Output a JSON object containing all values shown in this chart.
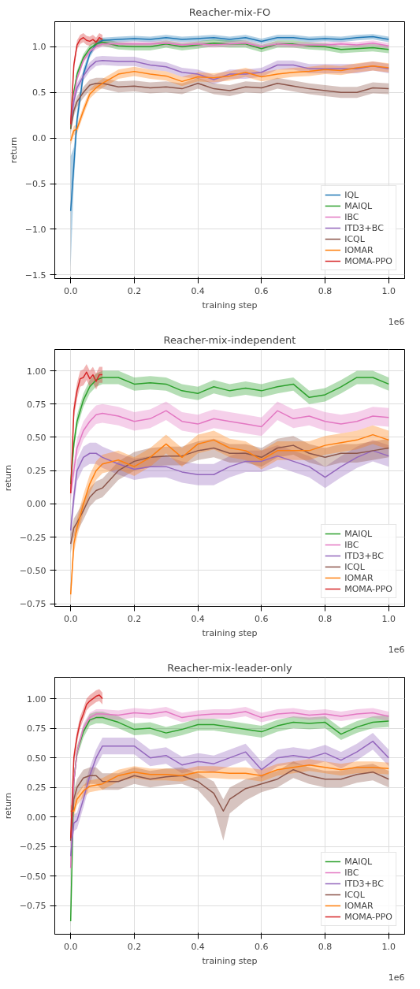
{
  "chart_data": [
    {
      "type": "line",
      "title": "Reacher-mix-FO",
      "xlabel": "training step",
      "ylabel": "return",
      "annotations": [
        "1e6"
      ],
      "grid": true,
      "legend": "bottom right",
      "xlim": [
        -0.05,
        1.05
      ],
      "ylim": [
        -1.54,
        1.275
      ],
      "xticks": [
        {
          "value": 0,
          "label": "0.0"
        },
        {
          "value": 0.2,
          "label": "0.2"
        },
        {
          "value": 0.4,
          "label": "0.4"
        },
        {
          "value": 0.6,
          "label": "0.6"
        },
        {
          "value": 0.8,
          "label": "0.8"
        },
        {
          "value": 1,
          "label": "1.0"
        }
      ],
      "yticks": [
        {
          "value": -1.5,
          "label": "−1.5"
        },
        {
          "value": -1,
          "label": "−1.0"
        },
        {
          "value": -0.5,
          "label": "−0.5"
        },
        {
          "value": 0,
          "label": "0.0"
        },
        {
          "value": 0.5,
          "label": "0.5"
        },
        {
          "value": 1,
          "label": "1.0"
        }
      ],
      "x": [
        0,
        0.01,
        0.02,
        0.04,
        0.06,
        0.08,
        0.1,
        0.15,
        0.2,
        0.25,
        0.3,
        0.35,
        0.4,
        0.45,
        0.5,
        0.55,
        0.6,
        0.65,
        0.7,
        0.75,
        0.8,
        0.85,
        0.9,
        0.95,
        1.0
      ],
      "series": [
        {
          "name": "IQL",
          "color": "#1f77b4",
          "values": [
            -0.8,
            -0.3,
            0.2,
            0.7,
            0.92,
            1.03,
            1.07,
            1.08,
            1.09,
            1.08,
            1.1,
            1.08,
            1.09,
            1.1,
            1.08,
            1.1,
            1.06,
            1.1,
            1.1,
            1.08,
            1.09,
            1.08,
            1.1,
            1.11,
            1.08
          ],
          "lower": [
            -1.41,
            -0.5,
            0.1,
            0.64,
            0.88,
            1.0,
            1.04,
            1.05,
            1.06,
            1.05,
            1.07,
            1.05,
            1.06,
            1.07,
            1.05,
            1.07,
            1.03,
            1.07,
            1.07,
            1.05,
            1.06,
            1.05,
            1.07,
            1.08,
            1.05
          ],
          "upper": [
            -0.2,
            -0.1,
            0.3,
            0.76,
            0.96,
            1.06,
            1.1,
            1.11,
            1.12,
            1.11,
            1.13,
            1.11,
            1.12,
            1.13,
            1.11,
            1.13,
            1.09,
            1.13,
            1.13,
            1.11,
            1.12,
            1.11,
            1.13,
            1.14,
            1.11
          ]
        },
        {
          "name": "MAIQL",
          "color": "#2ca02c",
          "values": [
            0.1,
            0.5,
            0.7,
            0.88,
            0.98,
            1.03,
            1.05,
            1.01,
            1.0,
            1.0,
            1.03,
            1.0,
            1.02,
            1.04,
            1.03,
            1.03,
            0.98,
            1.03,
            1.03,
            1.01,
            1.0,
            0.97,
            0.98,
            0.99,
            0.97
          ],
          "lower": [
            0.06,
            0.46,
            0.66,
            0.84,
            0.94,
            0.99,
            1.01,
            0.97,
            0.96,
            0.96,
            0.99,
            0.96,
            0.98,
            1.0,
            0.99,
            0.99,
            0.94,
            0.99,
            0.99,
            0.97,
            0.96,
            0.93,
            0.94,
            0.95,
            0.93
          ],
          "upper": [
            0.14,
            0.54,
            0.74,
            0.92,
            1.02,
            1.07,
            1.09,
            1.05,
            1.04,
            1.04,
            1.07,
            1.04,
            1.06,
            1.08,
            1.07,
            1.07,
            1.02,
            1.07,
            1.07,
            1.05,
            1.04,
            1.01,
            1.02,
            1.03,
            1.01
          ]
        },
        {
          "name": "IBC",
          "color": "#e377c2",
          "values": [
            0.2,
            0.45,
            0.65,
            0.85,
            0.95,
            1.0,
            1.03,
            1.03,
            1.03,
            1.03,
            1.04,
            1.02,
            1.03,
            1.02,
            1.03,
            1.04,
            1.0,
            1.03,
            1.02,
            1.02,
            1.02,
            1.03,
            1.02,
            1.04,
            1.01
          ],
          "lower": [
            0.17,
            0.42,
            0.62,
            0.82,
            0.92,
            0.97,
            1.0,
            1.0,
            1.0,
            1.0,
            1.01,
            0.99,
            1.0,
            0.99,
            1.0,
            1.01,
            0.97,
            1.0,
            0.99,
            0.99,
            0.99,
            1.0,
            0.99,
            1.01,
            0.98
          ],
          "upper": [
            0.23,
            0.48,
            0.68,
            0.88,
            0.98,
            1.03,
            1.06,
            1.06,
            1.06,
            1.06,
            1.07,
            1.05,
            1.06,
            1.05,
            1.06,
            1.07,
            1.03,
            1.06,
            1.05,
            1.05,
            1.05,
            1.06,
            1.05,
            1.07,
            1.04
          ]
        },
        {
          "name": "ITD3+BC",
          "color": "#9467bd",
          "values": [
            0.15,
            0.4,
            0.55,
            0.68,
            0.78,
            0.84,
            0.85,
            0.84,
            0.84,
            0.8,
            0.78,
            0.72,
            0.7,
            0.64,
            0.7,
            0.7,
            0.72,
            0.8,
            0.8,
            0.76,
            0.76,
            0.76,
            0.76,
            0.79,
            0.76
          ],
          "lower": [
            0.1,
            0.35,
            0.5,
            0.63,
            0.73,
            0.79,
            0.8,
            0.79,
            0.79,
            0.75,
            0.73,
            0.67,
            0.65,
            0.59,
            0.65,
            0.65,
            0.67,
            0.75,
            0.75,
            0.71,
            0.71,
            0.71,
            0.71,
            0.74,
            0.71
          ],
          "upper": [
            0.2,
            0.45,
            0.6,
            0.73,
            0.83,
            0.89,
            0.9,
            0.89,
            0.89,
            0.85,
            0.83,
            0.77,
            0.75,
            0.69,
            0.75,
            0.75,
            0.77,
            0.85,
            0.85,
            0.81,
            0.81,
            0.81,
            0.81,
            0.84,
            0.81
          ]
        },
        {
          "name": "ICQL",
          "color": "#8c564b",
          "values": [
            0.1,
            0.3,
            0.4,
            0.5,
            0.58,
            0.6,
            0.6,
            0.56,
            0.57,
            0.55,
            0.56,
            0.54,
            0.6,
            0.54,
            0.52,
            0.56,
            0.55,
            0.6,
            0.57,
            0.54,
            0.52,
            0.5,
            0.5,
            0.55,
            0.54
          ],
          "lower": [
            0.04,
            0.24,
            0.34,
            0.44,
            0.52,
            0.54,
            0.54,
            0.5,
            0.51,
            0.49,
            0.5,
            0.48,
            0.54,
            0.48,
            0.46,
            0.5,
            0.49,
            0.54,
            0.51,
            0.48,
            0.46,
            0.44,
            0.44,
            0.49,
            0.48
          ],
          "upper": [
            0.16,
            0.36,
            0.46,
            0.56,
            0.64,
            0.66,
            0.66,
            0.62,
            0.63,
            0.61,
            0.62,
            0.6,
            0.66,
            0.6,
            0.58,
            0.62,
            0.61,
            0.66,
            0.63,
            0.6,
            0.58,
            0.56,
            0.56,
            0.61,
            0.6
          ]
        },
        {
          "name": "IOMAR",
          "color": "#ff7f0e",
          "values": [
            -0.03,
            0.08,
            0.1,
            0.3,
            0.48,
            0.55,
            0.6,
            0.7,
            0.73,
            0.7,
            0.68,
            0.62,
            0.67,
            0.66,
            0.68,
            0.72,
            0.67,
            0.7,
            0.72,
            0.73,
            0.75,
            0.74,
            0.77,
            0.79,
            0.77
          ],
          "lower": [
            -0.08,
            0.03,
            0.05,
            0.25,
            0.43,
            0.5,
            0.55,
            0.65,
            0.68,
            0.65,
            0.63,
            0.57,
            0.62,
            0.61,
            0.63,
            0.67,
            0.62,
            0.65,
            0.67,
            0.68,
            0.7,
            0.69,
            0.72,
            0.74,
            0.72
          ],
          "upper": [
            0.02,
            0.13,
            0.15,
            0.35,
            0.53,
            0.6,
            0.65,
            0.75,
            0.78,
            0.75,
            0.73,
            0.67,
            0.72,
            0.71,
            0.73,
            0.77,
            0.72,
            0.75,
            0.77,
            0.78,
            0.8,
            0.79,
            0.82,
            0.84,
            0.82
          ]
        },
        {
          "name": "MOMA-PPO",
          "color": "#d62728",
          "x": [
            0,
            0.01,
            0.02,
            0.03,
            0.04,
            0.05,
            0.06,
            0.07,
            0.08,
            0.09,
            0.1
          ],
          "values": [
            0.15,
            0.8,
            1.02,
            1.08,
            1.1,
            1.07,
            1.06,
            1.08,
            1.05,
            1.1,
            1.08
          ],
          "lower": [
            0.1,
            0.75,
            0.97,
            1.03,
            1.05,
            1.02,
            1.01,
            1.03,
            1.0,
            1.05,
            1.03
          ],
          "upper": [
            0.2,
            0.85,
            1.07,
            1.13,
            1.15,
            1.12,
            1.11,
            1.13,
            1.1,
            1.15,
            1.13
          ]
        }
      ]
    },
    {
      "type": "line",
      "title": "Reacher-mix-independent",
      "xlabel": "training step",
      "ylabel": "return",
      "annotations": [
        "1e6"
      ],
      "grid": true,
      "legend": "bottom right",
      "xlim": [
        -0.05,
        1.05
      ],
      "ylim": [
        -0.77,
        1.16
      ],
      "xticks": [
        {
          "value": 0,
          "label": "0.0"
        },
        {
          "value": 0.2,
          "label": "0.2"
        },
        {
          "value": 0.4,
          "label": "0.4"
        },
        {
          "value": 0.6,
          "label": "0.6"
        },
        {
          "value": 0.8,
          "label": "0.8"
        },
        {
          "value": 1,
          "label": "1.0"
        }
      ],
      "yticks": [
        {
          "value": -0.75,
          "label": "−0.75"
        },
        {
          "value": -0.5,
          "label": "−0.50"
        },
        {
          "value": -0.25,
          "label": "−0.25"
        },
        {
          "value": 0,
          "label": "0.00"
        },
        {
          "value": 0.25,
          "label": "0.25"
        },
        {
          "value": 0.5,
          "label": "0.50"
        },
        {
          "value": 0.75,
          "label": "0.75"
        },
        {
          "value": 1,
          "label": "1.00"
        }
      ],
      "x": [
        0,
        0.01,
        0.02,
        0.04,
        0.06,
        0.08,
        0.1,
        0.15,
        0.2,
        0.25,
        0.3,
        0.35,
        0.4,
        0.45,
        0.5,
        0.55,
        0.6,
        0.65,
        0.7,
        0.75,
        0.8,
        0.85,
        0.9,
        0.95,
        1.0
      ],
      "series": [
        {
          "name": "MAIQL",
          "color": "#2ca02c",
          "values": [
            0.15,
            0.45,
            0.62,
            0.78,
            0.88,
            0.93,
            0.95,
            0.95,
            0.9,
            0.91,
            0.9,
            0.85,
            0.83,
            0.88,
            0.85,
            0.87,
            0.85,
            0.88,
            0.9,
            0.8,
            0.82,
            0.88,
            0.95,
            0.95,
            0.9
          ],
          "lower": [
            0.1,
            0.4,
            0.57,
            0.73,
            0.83,
            0.88,
            0.9,
            0.9,
            0.85,
            0.86,
            0.85,
            0.8,
            0.78,
            0.83,
            0.8,
            0.82,
            0.8,
            0.83,
            0.85,
            0.75,
            0.77,
            0.83,
            0.9,
            0.9,
            0.85
          ],
          "upper": [
            0.2,
            0.5,
            0.67,
            0.83,
            0.93,
            0.98,
            1.0,
            1.0,
            0.95,
            0.96,
            0.95,
            0.9,
            0.88,
            0.93,
            0.9,
            0.92,
            0.9,
            0.93,
            0.95,
            0.85,
            0.87,
            0.93,
            1.0,
            1.0,
            0.95
          ]
        },
        {
          "name": "IBC",
          "color": "#e377c2",
          "values": [
            0.08,
            0.25,
            0.42,
            0.55,
            0.62,
            0.67,
            0.68,
            0.66,
            0.62,
            0.64,
            0.7,
            0.62,
            0.6,
            0.64,
            0.62,
            0.6,
            0.58,
            0.7,
            0.64,
            0.66,
            0.62,
            0.6,
            0.62,
            0.66,
            0.65
          ],
          "lower": [
            0.01,
            0.18,
            0.35,
            0.48,
            0.55,
            0.6,
            0.61,
            0.59,
            0.55,
            0.57,
            0.63,
            0.55,
            0.53,
            0.57,
            0.55,
            0.53,
            0.51,
            0.63,
            0.57,
            0.59,
            0.55,
            0.53,
            0.55,
            0.59,
            0.58
          ],
          "upper": [
            0.15,
            0.32,
            0.49,
            0.62,
            0.69,
            0.74,
            0.75,
            0.73,
            0.69,
            0.71,
            0.77,
            0.69,
            0.67,
            0.71,
            0.69,
            0.67,
            0.65,
            0.77,
            0.71,
            0.73,
            0.69,
            0.67,
            0.69,
            0.73,
            0.72
          ]
        },
        {
          "name": "ITD3+BC",
          "color": "#9467bd",
          "values": [
            -0.2,
            0.05,
            0.25,
            0.35,
            0.38,
            0.38,
            0.35,
            0.3,
            0.26,
            0.28,
            0.28,
            0.24,
            0.22,
            0.22,
            0.28,
            0.32,
            0.32,
            0.36,
            0.32,
            0.28,
            0.2,
            0.28,
            0.35,
            0.4,
            0.36
          ],
          "lower": [
            -0.28,
            -0.03,
            0.17,
            0.27,
            0.3,
            0.3,
            0.27,
            0.22,
            0.18,
            0.2,
            0.2,
            0.16,
            0.14,
            0.14,
            0.2,
            0.24,
            0.24,
            0.28,
            0.24,
            0.2,
            0.12,
            0.2,
            0.27,
            0.32,
            0.28
          ],
          "upper": [
            -0.12,
            0.13,
            0.33,
            0.43,
            0.46,
            0.46,
            0.43,
            0.38,
            0.34,
            0.36,
            0.36,
            0.32,
            0.3,
            0.3,
            0.36,
            0.4,
            0.4,
            0.44,
            0.4,
            0.36,
            0.28,
            0.36,
            0.43,
            0.48,
            0.44
          ]
        },
        {
          "name": "ICQL",
          "color": "#8c564b",
          "values": [
            -0.3,
            -0.18,
            -0.14,
            -0.05,
            0.05,
            0.1,
            0.12,
            0.25,
            0.32,
            0.35,
            0.36,
            0.36,
            0.4,
            0.42,
            0.38,
            0.38,
            0.35,
            0.42,
            0.44,
            0.38,
            0.35,
            0.38,
            0.38,
            0.4,
            0.42
          ],
          "lower": [
            -0.37,
            -0.25,
            -0.21,
            -0.12,
            -0.02,
            0.03,
            0.05,
            0.18,
            0.25,
            0.28,
            0.29,
            0.29,
            0.33,
            0.35,
            0.31,
            0.31,
            0.28,
            0.35,
            0.37,
            0.31,
            0.28,
            0.31,
            0.31,
            0.33,
            0.35
          ],
          "upper": [
            -0.23,
            -0.11,
            -0.07,
            0.02,
            0.12,
            0.17,
            0.19,
            0.32,
            0.39,
            0.42,
            0.43,
            0.43,
            0.47,
            0.49,
            0.45,
            0.45,
            0.42,
            0.49,
            0.51,
            0.45,
            0.42,
            0.45,
            0.45,
            0.47,
            0.49
          ]
        },
        {
          "name": "IOMAR",
          "color": "#ff7f0e",
          "values": [
            -0.68,
            -0.3,
            -0.18,
            0.0,
            0.15,
            0.25,
            0.3,
            0.33,
            0.28,
            0.35,
            0.45,
            0.35,
            0.45,
            0.48,
            0.42,
            0.4,
            0.33,
            0.4,
            0.4,
            0.4,
            0.44,
            0.46,
            0.48,
            0.52,
            0.48
          ],
          "lower": [
            -0.75,
            -0.37,
            -0.25,
            -0.07,
            0.08,
            0.18,
            0.23,
            0.26,
            0.21,
            0.28,
            0.38,
            0.28,
            0.38,
            0.41,
            0.35,
            0.33,
            0.26,
            0.33,
            0.33,
            0.33,
            0.37,
            0.39,
            0.41,
            0.45,
            0.41
          ],
          "upper": [
            -0.61,
            -0.23,
            -0.11,
            0.07,
            0.22,
            0.32,
            0.37,
            0.4,
            0.35,
            0.42,
            0.52,
            0.42,
            0.52,
            0.55,
            0.49,
            0.47,
            0.4,
            0.47,
            0.47,
            0.47,
            0.51,
            0.53,
            0.55,
            0.59,
            0.55
          ]
        },
        {
          "name": "MOMA-PPO",
          "color": "#d62728",
          "x": [
            0,
            0.01,
            0.02,
            0.03,
            0.04,
            0.05,
            0.06,
            0.07,
            0.08,
            0.09,
            0.1
          ],
          "values": [
            0.08,
            0.7,
            0.85,
            0.94,
            0.95,
            0.99,
            0.94,
            0.97,
            0.92,
            0.97,
            0.97
          ],
          "lower": [
            0.02,
            0.64,
            0.79,
            0.88,
            0.89,
            0.93,
            0.88,
            0.91,
            0.86,
            0.91,
            0.91
          ],
          "upper": [
            0.14,
            0.76,
            0.91,
            1.0,
            1.01,
            1.05,
            1.0,
            1.03,
            0.98,
            1.03,
            1.03
          ]
        }
      ]
    },
    {
      "type": "line",
      "title": "Reacher-mix-leader-only",
      "xlabel": "training step",
      "ylabel": "return",
      "annotations": [
        "1e6"
      ],
      "grid": true,
      "legend": "bottom right",
      "xlim": [
        -0.05,
        1.05
      ],
      "ylim": [
        -0.99,
        1.18
      ],
      "xticks": [
        {
          "value": 0,
          "label": "0.0"
        },
        {
          "value": 0.2,
          "label": "0.2"
        },
        {
          "value": 0.4,
          "label": "0.4"
        },
        {
          "value": 0.6,
          "label": "0.6"
        },
        {
          "value": 0.8,
          "label": "0.8"
        },
        {
          "value": 1,
          "label": "1.0"
        }
      ],
      "yticks": [
        {
          "value": -0.75,
          "label": "−0.75"
        },
        {
          "value": -0.5,
          "label": "−0.50"
        },
        {
          "value": -0.25,
          "label": "−0.25"
        },
        {
          "value": 0,
          "label": "0.00"
        },
        {
          "value": 0.25,
          "label": "0.25"
        },
        {
          "value": 0.5,
          "label": "0.50"
        },
        {
          "value": 0.75,
          "label": "0.75"
        },
        {
          "value": 1,
          "label": "1.00"
        }
      ],
      "x": [
        0,
        0.01,
        0.02,
        0.04,
        0.06,
        0.08,
        0.1,
        0.15,
        0.2,
        0.25,
        0.3,
        0.35,
        0.4,
        0.45,
        0.5,
        0.55,
        0.6,
        0.65,
        0.7,
        0.75,
        0.8,
        0.85,
        0.9,
        0.95,
        1.0
      ],
      "series": [
        {
          "name": "MAIQL",
          "color": "#2ca02c",
          "values": [
            -0.88,
            0.3,
            0.55,
            0.72,
            0.82,
            0.84,
            0.84,
            0.8,
            0.74,
            0.75,
            0.71,
            0.74,
            0.78,
            0.78,
            0.76,
            0.74,
            0.72,
            0.77,
            0.8,
            0.79,
            0.8,
            0.7,
            0.76,
            0.8,
            0.81
          ],
          "lower": [
            -0.93,
            0.25,
            0.5,
            0.67,
            0.77,
            0.79,
            0.79,
            0.75,
            0.69,
            0.7,
            0.66,
            0.69,
            0.73,
            0.73,
            0.71,
            0.69,
            0.67,
            0.72,
            0.75,
            0.74,
            0.75,
            0.65,
            0.71,
            0.75,
            0.76
          ],
          "upper": [
            -0.83,
            0.35,
            0.6,
            0.77,
            0.87,
            0.89,
            0.89,
            0.85,
            0.79,
            0.8,
            0.76,
            0.79,
            0.83,
            0.83,
            0.81,
            0.79,
            0.77,
            0.82,
            0.85,
            0.84,
            0.85,
            0.75,
            0.81,
            0.85,
            0.86
          ]
        },
        {
          "name": "IBC",
          "color": "#e377c2",
          "values": [
            -0.43,
            0.3,
            0.55,
            0.75,
            0.84,
            0.87,
            0.87,
            0.86,
            0.88,
            0.87,
            0.89,
            0.84,
            0.86,
            0.87,
            0.87,
            0.89,
            0.84,
            0.87,
            0.88,
            0.86,
            0.87,
            0.85,
            0.87,
            0.88,
            0.85
          ],
          "lower": [
            -0.47,
            0.26,
            0.51,
            0.71,
            0.8,
            0.83,
            0.83,
            0.82,
            0.84,
            0.83,
            0.85,
            0.8,
            0.82,
            0.83,
            0.83,
            0.85,
            0.8,
            0.83,
            0.84,
            0.82,
            0.83,
            0.81,
            0.83,
            0.84,
            0.81
          ],
          "upper": [
            -0.39,
            0.34,
            0.59,
            0.79,
            0.88,
            0.91,
            0.91,
            0.9,
            0.92,
            0.91,
            0.93,
            0.88,
            0.9,
            0.91,
            0.91,
            0.93,
            0.88,
            0.91,
            0.92,
            0.9,
            0.91,
            0.89,
            0.91,
            0.92,
            0.89
          ]
        },
        {
          "name": "ITD3+BC",
          "color": "#9467bd",
          "values": [
            -0.33,
            -0.05,
            -0.03,
            0.15,
            0.35,
            0.5,
            0.6,
            0.6,
            0.6,
            0.5,
            0.52,
            0.44,
            0.47,
            0.45,
            0.5,
            0.55,
            0.4,
            0.5,
            0.52,
            0.5,
            0.54,
            0.48,
            0.55,
            0.64,
            0.5
          ],
          "lower": [
            -0.4,
            -0.12,
            -0.1,
            0.08,
            0.28,
            0.43,
            0.53,
            0.53,
            0.53,
            0.43,
            0.45,
            0.37,
            0.4,
            0.38,
            0.43,
            0.48,
            0.33,
            0.43,
            0.45,
            0.43,
            0.47,
            0.41,
            0.48,
            0.57,
            0.43
          ],
          "upper": [
            -0.26,
            0.02,
            0.04,
            0.22,
            0.42,
            0.57,
            0.67,
            0.67,
            0.67,
            0.57,
            0.59,
            0.51,
            0.54,
            0.52,
            0.57,
            0.62,
            0.47,
            0.57,
            0.59,
            0.57,
            0.61,
            0.55,
            0.62,
            0.71,
            0.57
          ]
        },
        {
          "name": "ICQL",
          "color": "#8c564b",
          "x": [
            0,
            0.01,
            0.02,
            0.04,
            0.06,
            0.08,
            0.1,
            0.15,
            0.2,
            0.25,
            0.3,
            0.35,
            0.4,
            0.45,
            0.48,
            0.5,
            0.55,
            0.6,
            0.65,
            0.7,
            0.75,
            0.8,
            0.85,
            0.9,
            0.95,
            1.0
          ],
          "values": [
            -0.2,
            0.15,
            0.25,
            0.33,
            0.35,
            0.35,
            0.3,
            0.3,
            0.35,
            0.32,
            0.34,
            0.35,
            0.3,
            0.2,
            0.05,
            0.15,
            0.24,
            0.28,
            0.32,
            0.4,
            0.35,
            0.32,
            0.32,
            0.36,
            0.38,
            0.32
          ],
          "lower": [
            -0.27,
            0.08,
            0.18,
            0.26,
            0.28,
            0.28,
            0.23,
            0.23,
            0.28,
            0.25,
            0.27,
            0.28,
            0.23,
            0.08,
            -0.2,
            0.03,
            0.14,
            0.21,
            0.25,
            0.33,
            0.28,
            0.25,
            0.25,
            0.29,
            0.31,
            0.25
          ],
          "upper": [
            -0.13,
            0.22,
            0.32,
            0.4,
            0.42,
            0.42,
            0.37,
            0.37,
            0.42,
            0.39,
            0.41,
            0.42,
            0.37,
            0.3,
            0.15,
            0.25,
            0.32,
            0.35,
            0.39,
            0.47,
            0.42,
            0.39,
            0.39,
            0.43,
            0.45,
            0.39
          ]
        },
        {
          "name": "IOMAR",
          "color": "#ff7f0e",
          "values": [
            0.05,
            0.05,
            0.15,
            0.22,
            0.26,
            0.27,
            0.28,
            0.35,
            0.38,
            0.36,
            0.36,
            0.35,
            0.38,
            0.38,
            0.37,
            0.37,
            0.35,
            0.4,
            0.42,
            0.44,
            0.42,
            0.4,
            0.42,
            0.42,
            0.41
          ],
          "lower": [
            0.0,
            0.0,
            0.1,
            0.17,
            0.21,
            0.22,
            0.23,
            0.3,
            0.33,
            0.31,
            0.31,
            0.3,
            0.33,
            0.33,
            0.32,
            0.32,
            0.3,
            0.35,
            0.37,
            0.39,
            0.37,
            0.35,
            0.37,
            0.37,
            0.36
          ],
          "upper": [
            0.1,
            0.1,
            0.2,
            0.27,
            0.31,
            0.32,
            0.33,
            0.4,
            0.43,
            0.41,
            0.41,
            0.4,
            0.43,
            0.43,
            0.42,
            0.42,
            0.4,
            0.45,
            0.47,
            0.49,
            0.47,
            0.45,
            0.47,
            0.47,
            0.46
          ]
        },
        {
          "name": "MOMA-PPO",
          "color": "#d62728",
          "x": [
            0,
            0.01,
            0.02,
            0.03,
            0.04,
            0.05,
            0.06,
            0.07,
            0.08,
            0.09,
            0.1
          ],
          "values": [
            -0.18,
            0.5,
            0.68,
            0.8,
            0.87,
            0.95,
            0.98,
            1.0,
            1.02,
            1.03,
            1.0
          ],
          "lower": [
            -0.23,
            0.45,
            0.63,
            0.75,
            0.82,
            0.9,
            0.93,
            0.95,
            0.97,
            0.98,
            0.95
          ],
          "upper": [
            -0.13,
            0.55,
            0.73,
            0.85,
            0.92,
            1.0,
            1.03,
            1.05,
            1.07,
            1.08,
            1.05
          ]
        }
      ]
    }
  ]
}
